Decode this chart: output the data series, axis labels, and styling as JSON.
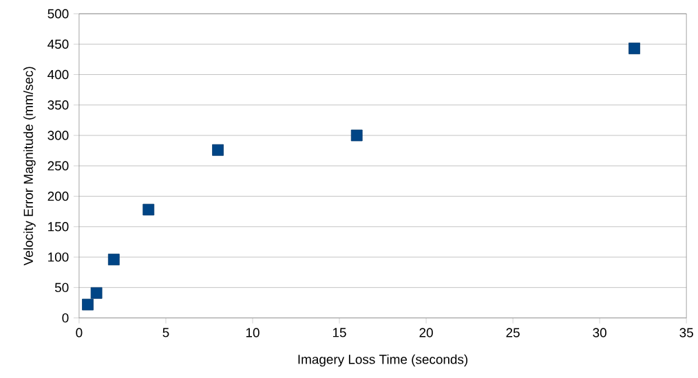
{
  "chart_data": {
    "type": "scatter",
    "xlabel": "Imagery Loss Time (seconds)",
    "ylabel": "Velocity Error Magnitude (mm/sec)",
    "x": [
      0.5,
      1,
      2,
      4,
      8,
      16,
      32
    ],
    "values": [
      22,
      41,
      96,
      178,
      276,
      300,
      443
    ],
    "color": "#004586",
    "marker": "square",
    "grid": "y",
    "xlim": [
      0,
      35
    ],
    "xticks": [
      0,
      5,
      10,
      15,
      20,
      25,
      30,
      35
    ],
    "ylim": [
      0,
      500
    ],
    "yticks": [
      0,
      50,
      100,
      150,
      200,
      250,
      300,
      350,
      400,
      450,
      500
    ]
  }
}
